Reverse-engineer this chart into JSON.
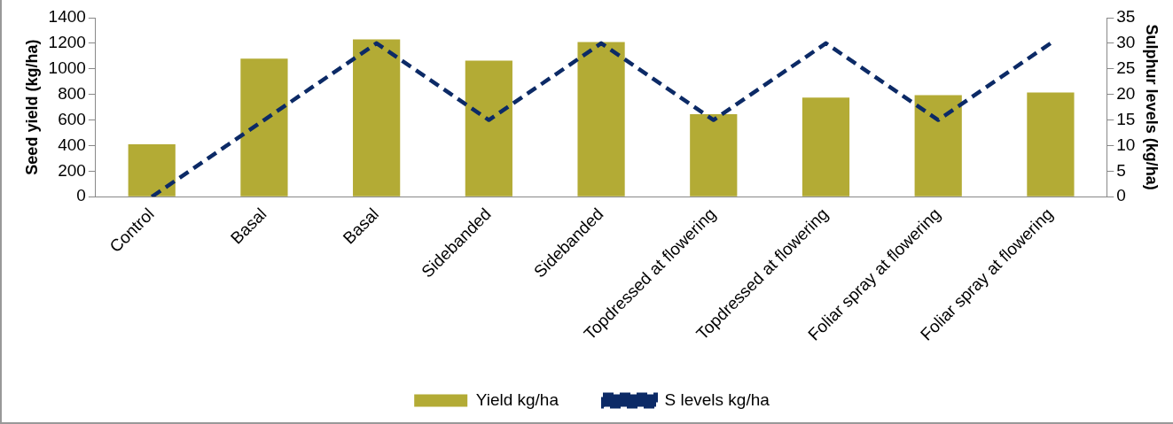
{
  "chart_data": {
    "type": "bar",
    "ylabel": "Seed yield (kg/ha)",
    "y2label": "Sulphur levels (kg/ha)",
    "categories": [
      "Control",
      "Basal",
      "Basal",
      "Sidebanded",
      "Sidebanded",
      "Topdressed at flowering",
      "Topdressed at flowering",
      "Foliar spray at flowering",
      "Foliar spray at flowering"
    ],
    "series": [
      {
        "name": "Yield kg/ha",
        "color": "#b3ab35",
        "values": [
          410,
          1080,
          1230,
          1065,
          1210,
          645,
          775,
          795,
          815
        ]
      },
      {
        "name": "S levels kg/ha",
        "type": "line",
        "axis": "y2",
        "color": "#0c2a66",
        "line_style": "dashed",
        "marker": "none",
        "values": [
          0,
          15,
          30,
          15,
          30,
          15,
          30,
          15,
          30
        ]
      }
    ],
    "ylim": [
      0,
      1400
    ],
    "yticks": [
      0,
      200,
      400,
      600,
      800,
      1000,
      1200,
      1400
    ],
    "y2lim": [
      0,
      35
    ],
    "y2ticks": [
      0,
      5,
      10,
      15,
      20,
      25,
      30,
      35
    ],
    "grid": false,
    "legend": "bottom"
  }
}
